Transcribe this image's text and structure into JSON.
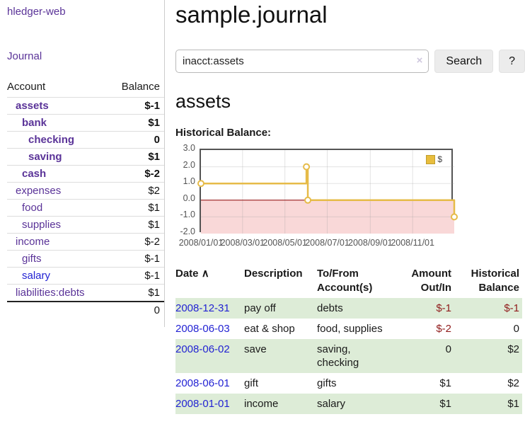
{
  "app": {
    "name": "hledger-web"
  },
  "sidebar": {
    "journal_link": "Journal",
    "accounts_table": {
      "account_header": "Account",
      "balance_header": "Balance",
      "rows": [
        {
          "name": "assets",
          "balance": "$-1",
          "depth": 1,
          "emphasized": true,
          "balance_tone": "neg-strong",
          "link_tone": "purple"
        },
        {
          "name": "bank",
          "balance": "$1",
          "depth": 2,
          "emphasized": true,
          "balance_tone": "",
          "link_tone": "purple"
        },
        {
          "name": "checking",
          "balance": "0",
          "depth": 3,
          "emphasized": true,
          "balance_tone": "",
          "link_tone": "purple"
        },
        {
          "name": "saving",
          "balance": "$1",
          "depth": 3,
          "emphasized": true,
          "balance_tone": "",
          "link_tone": "purple"
        },
        {
          "name": "cash",
          "balance": "$-2",
          "depth": 2,
          "emphasized": true,
          "balance_tone": "neg-strong",
          "link_tone": "purple"
        },
        {
          "name": "expenses",
          "balance": "$2",
          "depth": 1,
          "emphasized": false,
          "balance_tone": "",
          "link_tone": "purple"
        },
        {
          "name": "food",
          "balance": "$1",
          "depth": 2,
          "emphasized": false,
          "balance_tone": "",
          "link_tone": "purple"
        },
        {
          "name": "supplies",
          "balance": "$1",
          "depth": 2,
          "emphasized": false,
          "balance_tone": "",
          "link_tone": "purple"
        },
        {
          "name": "income",
          "balance": "$-2",
          "depth": 1,
          "emphasized": false,
          "balance_tone": "neg-soft",
          "link_tone": "purple"
        },
        {
          "name": "gifts",
          "balance": "$-1",
          "depth": 2,
          "emphasized": false,
          "balance_tone": "neg-soft",
          "link_tone": "purple"
        },
        {
          "name": "salary",
          "balance": "$-1",
          "depth": 2,
          "emphasized": false,
          "balance_tone": "neg-soft",
          "link_tone": "blue"
        },
        {
          "name": "liabilities:debts",
          "balance": "$1",
          "depth": 1,
          "emphasized": false,
          "balance_tone": "",
          "link_tone": "purple"
        }
      ],
      "total": "0"
    }
  },
  "header": {
    "title": "sample.journal"
  },
  "search": {
    "value": "inacct:assets",
    "clear_icon": "×",
    "search_button": "Search",
    "help_button": "?"
  },
  "content": {
    "account_title": "assets",
    "chart_label": "Historical Balance:"
  },
  "chart_data": {
    "type": "line",
    "title": "Historical Balance:",
    "series": [
      {
        "name": "$",
        "color": "#e6bb48",
        "step": true,
        "points": [
          [
            "2008-01-01",
            1
          ],
          [
            "2008-06-01",
            2
          ],
          [
            "2008-06-03",
            0
          ],
          [
            "2008-12-31",
            -1
          ]
        ]
      }
    ],
    "x_ticks": [
      "2008/01/01",
      "2008/03/01",
      "2008/05/01",
      "2008/07/01",
      "2008/09/01",
      "2008/11/01"
    ],
    "y_ticks": [
      "3.0",
      "2.0",
      "1.0",
      "0.0",
      "-1.0",
      "-2.0"
    ],
    "ylim": [
      -2,
      3
    ],
    "grid": true,
    "negative_fill": "#f9d8d8",
    "zero_line_color": "#8b0000",
    "legend": {
      "label": "$",
      "position": "top-right",
      "swatch_color": "#e8bd3d"
    }
  },
  "register_table": {
    "headers": {
      "date": "Date",
      "sort_icon": "∧",
      "description": "Description",
      "accounts": "To/From Account(s)",
      "amount": "Amount Out/In",
      "balance": "Historical Balance"
    },
    "rows": [
      {
        "date": "2008-12-31",
        "description": "pay off",
        "accounts": "debts",
        "amount": "$-1",
        "balance": "$-1",
        "amount_tone": "neg-strong",
        "balance_tone": "neg-strong"
      },
      {
        "date": "2008-06-03",
        "description": "eat & shop",
        "accounts": "food, supplies",
        "amount": "$-2",
        "balance": "0",
        "amount_tone": "neg-strong",
        "balance_tone": ""
      },
      {
        "date": "2008-06-02",
        "description": "save",
        "accounts": "saving, checking",
        "amount": "0",
        "balance": "$2",
        "amount_tone": "",
        "balance_tone": ""
      },
      {
        "date": "2008-06-01",
        "description": "gift",
        "accounts": "gifts",
        "amount": "$1",
        "balance": "$2",
        "amount_tone": "",
        "balance_tone": ""
      },
      {
        "date": "2008-01-01",
        "description": "income",
        "accounts": "salary",
        "amount": "$1",
        "balance": "$1",
        "amount_tone": "",
        "balance_tone": ""
      }
    ]
  }
}
